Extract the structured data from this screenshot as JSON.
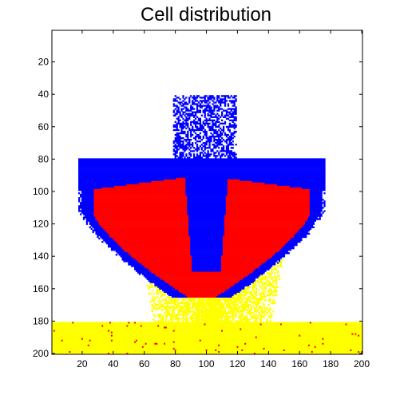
{
  "chart_data": {
    "type": "heatmap",
    "title": "Cell distribution",
    "xlabel": "",
    "ylabel": "",
    "xlim": [
      0.5,
      200.5
    ],
    "ylim": [
      0.5,
      200.5
    ],
    "y_axis_direction": "reversed",
    "grid": false,
    "x_ticks": [
      20,
      40,
      60,
      80,
      100,
      120,
      140,
      160,
      180,
      200
    ],
    "y_ticks": [
      20,
      40,
      60,
      80,
      100,
      120,
      140,
      160,
      180,
      200
    ],
    "colors": {
      "background": "#ffffff",
      "blue": "#0000ff",
      "red": "#ff0000",
      "yellow": "#ffff00"
    },
    "regions": [
      {
        "color": "yellow",
        "shape": "band",
        "x_range": [
          0.5,
          200.5
        ],
        "y_range": [
          180.5,
          200.5
        ],
        "description": "dense substrate layer with scattered red cells"
      },
      {
        "color": "blue",
        "shape": "column",
        "x_range": [
          79,
          119
        ],
        "y_range": [
          41,
          86
        ],
        "description": "sparse stalk of cells"
      },
      {
        "color": "blue",
        "shape": "cap",
        "x_range": [
          15,
          179
        ],
        "y_range": [
          80,
          165
        ],
        "description": "outer cap of colony"
      },
      {
        "color": "red",
        "shape": "mass",
        "x_range": [
          25,
          170
        ],
        "y_range": [
          90,
          165
        ],
        "description": "inner red mass"
      },
      {
        "color": "yellow",
        "shape": "spread",
        "x_range": [
          58,
          150
        ],
        "y_range": [
          140,
          180
        ],
        "description": "yellow spread under colony"
      }
    ]
  }
}
